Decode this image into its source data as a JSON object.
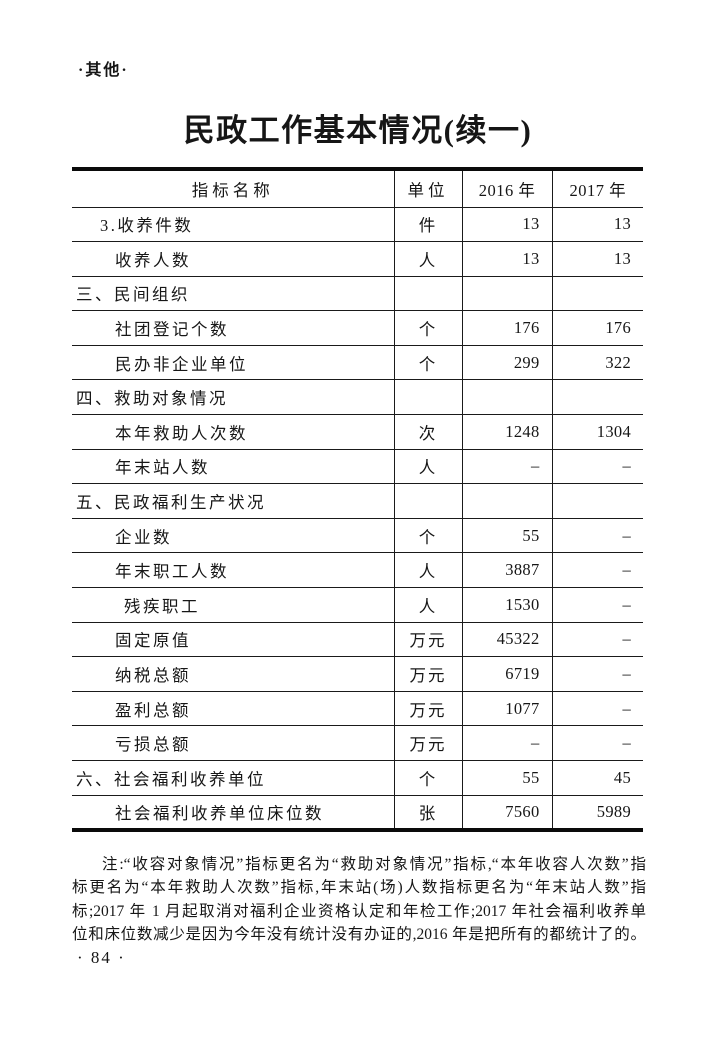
{
  "page": {
    "section_marker": "·其他·",
    "title": "民政工作基本情况(续一)",
    "page_number": "· 84 ·",
    "background": "#ffffff",
    "text_color": "#161616"
  },
  "table": {
    "headers": {
      "indicator": "指标名称",
      "unit": "单位",
      "y2016": "2016 年",
      "y2017": "2017 年"
    },
    "rows": [
      {
        "indicator": "3.收养件数",
        "indent": 1,
        "unit": "件",
        "y2016": "13",
        "y2017": "13"
      },
      {
        "indicator": "收养人数",
        "indent": 2,
        "unit": "人",
        "y2016": "13",
        "y2017": "13"
      },
      {
        "indicator": "三、民间组织",
        "indent": 0,
        "unit": "",
        "y2016": "",
        "y2017": ""
      },
      {
        "indicator": "社团登记个数",
        "indent": 2,
        "unit": "个",
        "y2016": "176",
        "y2017": "176"
      },
      {
        "indicator": "民办非企业单位",
        "indent": 2,
        "unit": "个",
        "y2016": "299",
        "y2017": "322"
      },
      {
        "indicator": "四、救助对象情况",
        "indent": 0,
        "unit": "",
        "y2016": "",
        "y2017": ""
      },
      {
        "indicator": "本年救助人次数",
        "indent": 2,
        "unit": "次",
        "y2016": "1248",
        "y2017": "1304"
      },
      {
        "indicator": "年末站人数",
        "indent": 2,
        "unit": "人",
        "y2016": "–",
        "y2017": "–"
      },
      {
        "indicator": "五、民政福利生产状况",
        "indent": 0,
        "unit": "",
        "y2016": "",
        "y2017": ""
      },
      {
        "indicator": "企业数",
        "indent": 2,
        "unit": "个",
        "y2016": "55",
        "y2017": "–"
      },
      {
        "indicator": "年末职工人数",
        "indent": 2,
        "unit": "人",
        "y2016": "3887",
        "y2017": "–"
      },
      {
        "indicator": "残疾职工",
        "indent": 3,
        "unit": "人",
        "y2016": "1530",
        "y2017": "–"
      },
      {
        "indicator": "固定原值",
        "indent": 2,
        "unit": "万元",
        "y2016": "45322",
        "y2017": "–"
      },
      {
        "indicator": "纳税总额",
        "indent": 2,
        "unit": "万元",
        "y2016": "6719",
        "y2017": "–"
      },
      {
        "indicator": "盈利总额",
        "indent": 2,
        "unit": "万元",
        "y2016": "1077",
        "y2017": "–"
      },
      {
        "indicator": "亏损总额",
        "indent": 2,
        "unit": "万元",
        "y2016": "–",
        "y2017": "–"
      },
      {
        "indicator": "六、社会福利收养单位",
        "indent": 0,
        "unit": "个",
        "y2016": "55",
        "y2017": "45"
      },
      {
        "indicator": "社会福利收养单位床位数",
        "indent": 2,
        "unit": "张",
        "y2016": "7560",
        "y2017": "5989"
      }
    ]
  },
  "note": {
    "lines": [
      "注:“收容对象情况”指标更名为“救助对象情况”指标,“本年收容人次数”指",
      "标更名为“本年救助人次数”指标,年末站(场)人数指标更名为“年末站人数”指",
      "标;2017 年 1 月起取消对福利企业资格认定和年检工作;2017 年社会福利收养单",
      "位和床位数减少是因为今年没有统计没有办证的,2016 年是把所有的都统计了的。"
    ]
  }
}
